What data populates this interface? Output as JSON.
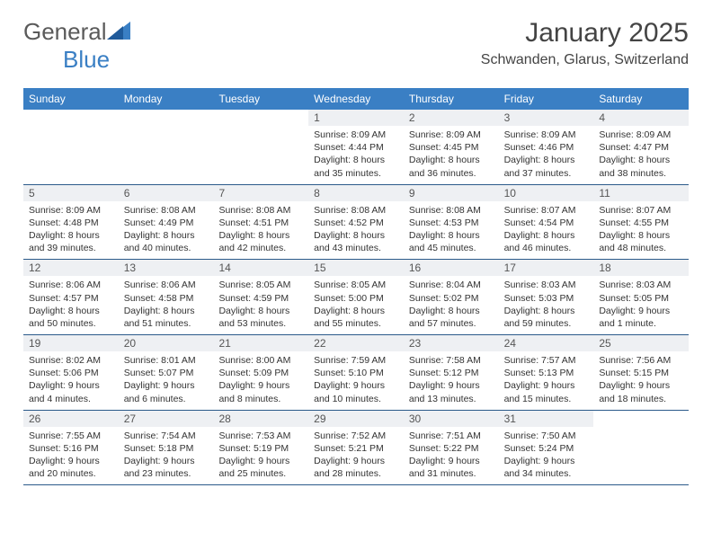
{
  "brand": {
    "name1": "General",
    "name2": "Blue"
  },
  "header": {
    "month_title": "January 2025",
    "location": "Schwanden, Glarus, Switzerland"
  },
  "colors": {
    "header_bar": "#3a7fc4",
    "header_text": "#ffffff",
    "daynum_bg": "#eef0f3",
    "week_border": "#2b5a8a",
    "text": "#333333",
    "brand_gray": "#5a5a5a",
    "brand_blue": "#3a7fc4"
  },
  "weekdays": [
    "Sunday",
    "Monday",
    "Tuesday",
    "Wednesday",
    "Thursday",
    "Friday",
    "Saturday"
  ],
  "weeks": [
    [
      null,
      null,
      null,
      {
        "n": "1",
        "sr": "8:09 AM",
        "ss": "4:44 PM",
        "dl": "8 hours and 35 minutes."
      },
      {
        "n": "2",
        "sr": "8:09 AM",
        "ss": "4:45 PM",
        "dl": "8 hours and 36 minutes."
      },
      {
        "n": "3",
        "sr": "8:09 AM",
        "ss": "4:46 PM",
        "dl": "8 hours and 37 minutes."
      },
      {
        "n": "4",
        "sr": "8:09 AM",
        "ss": "4:47 PM",
        "dl": "8 hours and 38 minutes."
      }
    ],
    [
      {
        "n": "5",
        "sr": "8:09 AM",
        "ss": "4:48 PM",
        "dl": "8 hours and 39 minutes."
      },
      {
        "n": "6",
        "sr": "8:08 AM",
        "ss": "4:49 PM",
        "dl": "8 hours and 40 minutes."
      },
      {
        "n": "7",
        "sr": "8:08 AM",
        "ss": "4:51 PM",
        "dl": "8 hours and 42 minutes."
      },
      {
        "n": "8",
        "sr": "8:08 AM",
        "ss": "4:52 PM",
        "dl": "8 hours and 43 minutes."
      },
      {
        "n": "9",
        "sr": "8:08 AM",
        "ss": "4:53 PM",
        "dl": "8 hours and 45 minutes."
      },
      {
        "n": "10",
        "sr": "8:07 AM",
        "ss": "4:54 PM",
        "dl": "8 hours and 46 minutes."
      },
      {
        "n": "11",
        "sr": "8:07 AM",
        "ss": "4:55 PM",
        "dl": "8 hours and 48 minutes."
      }
    ],
    [
      {
        "n": "12",
        "sr": "8:06 AM",
        "ss": "4:57 PM",
        "dl": "8 hours and 50 minutes."
      },
      {
        "n": "13",
        "sr": "8:06 AM",
        "ss": "4:58 PM",
        "dl": "8 hours and 51 minutes."
      },
      {
        "n": "14",
        "sr": "8:05 AM",
        "ss": "4:59 PM",
        "dl": "8 hours and 53 minutes."
      },
      {
        "n": "15",
        "sr": "8:05 AM",
        "ss": "5:00 PM",
        "dl": "8 hours and 55 minutes."
      },
      {
        "n": "16",
        "sr": "8:04 AM",
        "ss": "5:02 PM",
        "dl": "8 hours and 57 minutes."
      },
      {
        "n": "17",
        "sr": "8:03 AM",
        "ss": "5:03 PM",
        "dl": "8 hours and 59 minutes."
      },
      {
        "n": "18",
        "sr": "8:03 AM",
        "ss": "5:05 PM",
        "dl": "9 hours and 1 minute."
      }
    ],
    [
      {
        "n": "19",
        "sr": "8:02 AM",
        "ss": "5:06 PM",
        "dl": "9 hours and 4 minutes."
      },
      {
        "n": "20",
        "sr": "8:01 AM",
        "ss": "5:07 PM",
        "dl": "9 hours and 6 minutes."
      },
      {
        "n": "21",
        "sr": "8:00 AM",
        "ss": "5:09 PM",
        "dl": "9 hours and 8 minutes."
      },
      {
        "n": "22",
        "sr": "7:59 AM",
        "ss": "5:10 PM",
        "dl": "9 hours and 10 minutes."
      },
      {
        "n": "23",
        "sr": "7:58 AM",
        "ss": "5:12 PM",
        "dl": "9 hours and 13 minutes."
      },
      {
        "n": "24",
        "sr": "7:57 AM",
        "ss": "5:13 PM",
        "dl": "9 hours and 15 minutes."
      },
      {
        "n": "25",
        "sr": "7:56 AM",
        "ss": "5:15 PM",
        "dl": "9 hours and 18 minutes."
      }
    ],
    [
      {
        "n": "26",
        "sr": "7:55 AM",
        "ss": "5:16 PM",
        "dl": "9 hours and 20 minutes."
      },
      {
        "n": "27",
        "sr": "7:54 AM",
        "ss": "5:18 PM",
        "dl": "9 hours and 23 minutes."
      },
      {
        "n": "28",
        "sr": "7:53 AM",
        "ss": "5:19 PM",
        "dl": "9 hours and 25 minutes."
      },
      {
        "n": "29",
        "sr": "7:52 AM",
        "ss": "5:21 PM",
        "dl": "9 hours and 28 minutes."
      },
      {
        "n": "30",
        "sr": "7:51 AM",
        "ss": "5:22 PM",
        "dl": "9 hours and 31 minutes."
      },
      {
        "n": "31",
        "sr": "7:50 AM",
        "ss": "5:24 PM",
        "dl": "9 hours and 34 minutes."
      },
      null
    ]
  ],
  "labels": {
    "sunrise": "Sunrise:",
    "sunset": "Sunset:",
    "daylight": "Daylight:"
  }
}
